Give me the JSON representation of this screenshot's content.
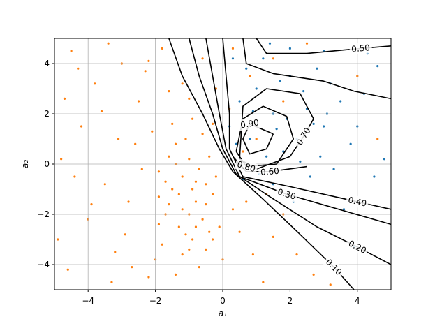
{
  "chart_data": {
    "type": "scatter",
    "xlabel": "a₁",
    "ylabel": "a₂",
    "xlim": [
      -5,
      5
    ],
    "ylim": [
      -5,
      5
    ],
    "xticks": [
      {
        "value": -4,
        "label": "−4"
      },
      {
        "value": -2,
        "label": "−2"
      },
      0,
      2,
      4
    ],
    "yticks": [
      {
        "value": -4,
        "label": "−4"
      },
      {
        "value": -2,
        "label": "−2"
      },
      0,
      2,
      4
    ],
    "grid": true,
    "series": [
      {
        "color": "#1f77b4",
        "x": [
          0.5,
          1.0,
          1.5,
          2.0,
          2.5,
          3.0,
          1.2,
          0.8,
          1.8,
          2.2,
          3.5,
          2.8,
          1.5,
          0.4,
          3.8,
          4.2,
          2.0,
          0.7,
          1.6,
          2.4,
          3.2,
          0.9,
          1.3,
          2.9,
          4.5,
          3.6,
          2.6,
          0.3,
          1.9,
          3.0,
          4.0,
          1.1,
          0.6,
          2.1,
          4.6,
          3.3,
          1.7,
          2.7,
          4.8,
          3.9,
          0.2,
          1.4,
          2.3,
          3.1,
          4.3
        ],
        "y": [
          2.5,
          3.0,
          2.0,
          3.5,
          2.2,
          1.5,
          4.2,
          1.0,
          0.5,
          1.0,
          2.5,
          3.8,
          -0.8,
          0.8,
          0.8,
          2.8,
          4.6,
          3.8,
          1.4,
          2.9,
          3.2,
          2.1,
          0.3,
          0.3,
          -0.5,
          -1.8,
          -0.5,
          4.2,
          1.8,
          4.5,
          1.5,
          -0.4,
          -0.6,
          -1.5,
          3.9,
          -0.2,
          3.3,
          1.6,
          0.2,
          -3.3,
          1.5,
          4.8,
          0.1,
          2.0,
          4.4
        ]
      },
      {
        "color": "#ff7f0e",
        "x": [
          -1.5,
          -1.2,
          -0.8,
          -1.0,
          -0.5,
          -1.7,
          -1.3,
          -0.9,
          -0.6,
          -1.1,
          -0.4,
          -1.9,
          -1.4,
          -0.7,
          -1.6,
          -1.0,
          -0.3,
          -1.8,
          -1.2,
          -0.5,
          -1.5,
          -0.9,
          -0.6,
          -1.3,
          -0.8,
          -1.9,
          -0.2,
          -0.4,
          -1.6,
          -1.1,
          -4.5,
          -3.8,
          -4.2,
          -3.0,
          -2.5,
          -4.8,
          -3.5,
          -4.0,
          -3.2,
          -4.6,
          -2.8,
          -2.2,
          -3.6,
          -2.6,
          -4.3,
          -2.9,
          -3.3,
          -4.9,
          -2.3,
          -1.8,
          -1.2,
          -0.6,
          -0.2,
          0.3,
          -2.0,
          -1.4,
          -0.7,
          0,
          0.5,
          0.9,
          1.5,
          1.2,
          2.2,
          0.3,
          -0.1,
          0.7,
          1.8,
          2.7,
          -2.4,
          -2.1,
          -3.9,
          -4.4,
          -3.1,
          -2.7,
          -1.0,
          -1.6,
          0.8,
          0.2,
          -0.3,
          1.5,
          2.5,
          1.0,
          1.8,
          0.6,
          -4.7,
          -3.4,
          -2.2,
          -0.9,
          -1.7,
          -1.2,
          -0.5,
          -1.9,
          -0.8,
          -1.4,
          -1.0,
          -0.3,
          3.2,
          1.3,
          4.0,
          4.6
        ],
        "y": [
          -1,
          -0.5,
          -1.5,
          0.2,
          -0.8,
          -2,
          -2.5,
          -3,
          -2.2,
          1.0,
          0.3,
          -0.3,
          0.8,
          -0.2,
          -1.6,
          -2.0,
          -1.2,
          -3.2,
          -3.6,
          -3.4,
          1.6,
          1.8,
          1.2,
          -1.2,
          -0.7,
          -1.3,
          -0.5,
          -2.7,
          0.3,
          -2.8,
          4.5,
          3.2,
          1.5,
          4.0,
          2.5,
          0.2,
          -0.8,
          -2.2,
          -3.5,
          -4.2,
          -1.5,
          -4.5,
          2.1,
          0.8,
          3.8,
          -2.8,
          -4.7,
          -3.0,
          3.7,
          4.6,
          3.2,
          4.2,
          3.0,
          4.6,
          -3.8,
          -4.4,
          -4.1,
          -3.8,
          -2.7,
          -3.6,
          -2.9,
          -4.7,
          -3.6,
          -1.8,
          -2.5,
          -1.5,
          -2.0,
          -4.4,
          -0.2,
          1.3,
          -1.6,
          -0.5,
          1.0,
          -4.1,
          2.6,
          2.9,
          3.5,
          2.2,
          1.6,
          4.2,
          4.8,
          1.0,
          2.5,
          0.5,
          2.6,
          4.8,
          4.1,
          -1.0,
          -0.7,
          -1.8,
          -1.6,
          -2.4,
          -2.5,
          0.0,
          -3.4,
          -3.0,
          -4.8,
          -1.2,
          3.5,
          1.0
        ]
      }
    ],
    "contours": [
      {
        "level": 0.1,
        "label": "0.10",
        "color": "#000000",
        "x": [
          -1.6,
          -1.2,
          -0.6,
          -0.1,
          0.3,
          1.2,
          2.3,
          3.3,
          3.9
        ],
        "y": [
          5,
          3.5,
          2,
          0.6,
          -0.3,
          -1.4,
          -2.8,
          -4.1,
          -5
        ]
      },
      {
        "level": 0.2,
        "label": "0.20",
        "color": "#000000",
        "x": [
          -1.0,
          -0.7,
          -0.3,
          0,
          0.4,
          1.4,
          2.8,
          4.0,
          5
        ],
        "y": [
          5,
          3.5,
          2,
          0.6,
          -0.4,
          -1.3,
          -2.5,
          -3.3,
          -4.0
        ]
      },
      {
        "level": 0.3,
        "label": "0.30",
        "color": "#000000",
        "x": [
          -0.5,
          -0.3,
          -0.1,
          0.1,
          0.5,
          1.9,
          5
        ],
        "y": [
          5,
          3.5,
          2,
          0.6,
          -0.5,
          -1.2,
          -2.4
        ]
      },
      {
        "level": 0.4,
        "label": "0.40",
        "color": "#000000",
        "x": [
          0,
          0.1,
          0.2,
          0.2,
          0.6,
          2,
          4.0,
          5
        ],
        "y": [
          5,
          3.5,
          2,
          0.6,
          -0.5,
          -0.9,
          -1.5,
          -1.8
        ]
      },
      {
        "level": 0.5,
        "label": "0.50",
        "color": "#000000",
        "x": [
          1.0,
          1.3,
          2.5,
          4.1,
          5
        ],
        "y": [
          5,
          4.4,
          4.4,
          4.6,
          4.7
        ]
      },
      {
        "level": 0.6,
        "label": "0.60",
        "color": "#000000",
        "x": [
          0.6,
          0.7,
          1.5,
          3.0,
          3.9,
          5,
          null,
          0.3,
          0.7,
          1.4,
          2.5
        ],
        "y": [
          5,
          4,
          3.6,
          3.3,
          2.9,
          2.6,
          null,
          0.3,
          -0.3,
          -0.3,
          -0.1
        ]
      },
      {
        "level": 0.7,
        "label": "0.70",
        "color": "#000000",
        "x": [
          2.0,
          1.0,
          0.5,
          0.6,
          1.3,
          2.3,
          2.7,
          2.4,
          2.0
        ],
        "y": [
          0.3,
          -0.2,
          0.2,
          2.3,
          3.0,
          2.8,
          1.8,
          1.1,
          0.3
        ]
      },
      {
        "level": 0.8,
        "label": "0.80",
        "color": "#000000",
        "x": [
          0.4,
          0.6,
          1.2,
          1.9,
          2.1,
          1.6,
          0.7,
          0.4
        ],
        "y": [
          0.5,
          1.8,
          2.3,
          1.9,
          1.0,
          0,
          -0.1,
          0.5
        ]
      },
      {
        "level": 0.9,
        "label": "0.90",
        "color": "#000000",
        "x": [
          1.5,
          1.3,
          0.8,
          0.6,
          0.8,
          1.5
        ],
        "y": [
          1.2,
          0.6,
          0.4,
          1.0,
          1.6,
          1.2
        ]
      }
    ]
  }
}
